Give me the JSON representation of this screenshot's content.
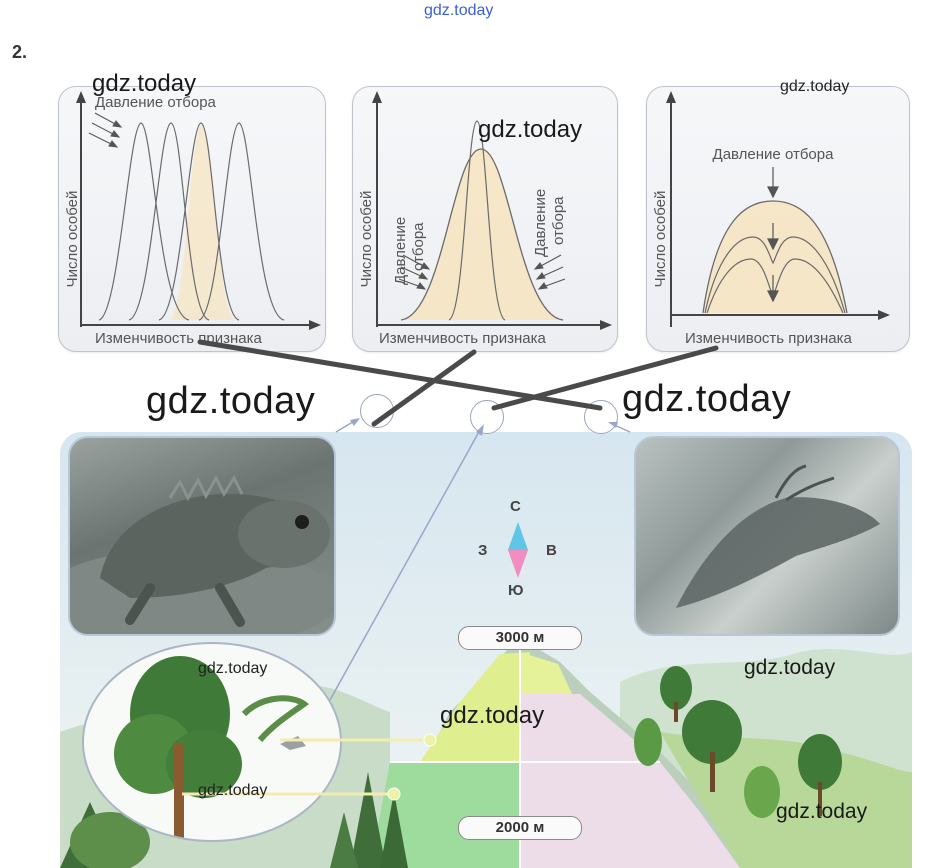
{
  "watermark": "gdz.today",
  "task_number": "2.",
  "panels": [
    {
      "ylabel": "Число особей",
      "xlabel": "Изменчивость признака",
      "pressure_label": "Давление отбора"
    },
    {
      "ylabel": "Число особей",
      "xlabel": "Изменчивость признака",
      "pressure_left_line1": "Давление",
      "pressure_left_line2": "отбора",
      "pressure_right_line1": "Давление",
      "pressure_right_line2": "отбора"
    },
    {
      "ylabel": "Число особей",
      "xlabel": "Изменчивость признака",
      "pressure_label": "Давление отбора"
    }
  ],
  "compass": {
    "north": "С",
    "south": "Ю",
    "west": "З",
    "east": "В"
  },
  "altitudes": {
    "high": "3000 м",
    "low": "2000 м"
  },
  "colors": {
    "panel_fill": "#f7e8c8",
    "connector": "#4a4a4a",
    "compass_north": "#5fc6e8",
    "compass_south": "#f08ec0"
  }
}
